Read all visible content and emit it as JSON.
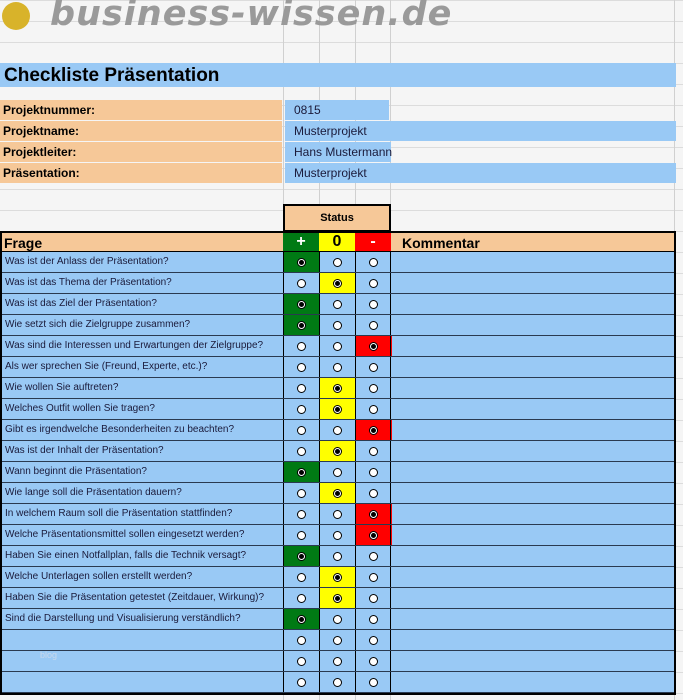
{
  "logo": {
    "text": "business-wissen.de"
  },
  "title": "Checkliste Präsentation",
  "info": [
    {
      "label": "Projektnummer:",
      "value": "0815"
    },
    {
      "label": "Projektname:",
      "value": "Musterprojekt"
    },
    {
      "label": "Projektleiter:",
      "value": "Hans Mustermann"
    },
    {
      "label": "Präsentation:",
      "value": "Musterprojekt"
    }
  ],
  "table": {
    "status_label": "Status",
    "col_frage": "Frage",
    "col_plus": "+",
    "col_zero": "0",
    "col_minus": "-",
    "col_kommentar": "Kommentar",
    "colors": {
      "plus": "#007a14",
      "zero": "#ffff00",
      "minus": "#ff0000"
    },
    "rows": [
      {
        "q": "Was ist der Anlass der Präsentation?",
        "status": "plus"
      },
      {
        "q": "Was ist das Thema der Präsentation?",
        "status": "zero"
      },
      {
        "q": "Was ist das Ziel der Präsentation?",
        "status": "plus"
      },
      {
        "q": "Wie setzt sich die Zielgruppe zusammen?",
        "status": "plus"
      },
      {
        "q": "Was sind die Interessen und Erwartungen der Zielgruppe?",
        "status": "minus"
      },
      {
        "q": "Als wer sprechen Sie (Freund, Experte, etc.)?",
        "status": ""
      },
      {
        "q": "Wie wollen Sie auftreten?",
        "status": "zero"
      },
      {
        "q": "Welches Outfit wollen Sie tragen?",
        "status": "zero"
      },
      {
        "q": "Gibt es irgendwelche Besonderheiten zu beachten?",
        "status": "minus"
      },
      {
        "q": "Was ist der Inhalt der Präsentation?",
        "status": "zero"
      },
      {
        "q": "Wann beginnt die Präsentation?",
        "status": "plus"
      },
      {
        "q": "Wie lange soll die Präsentation dauern?",
        "status": "zero"
      },
      {
        "q": "In welchem Raum soll die Präsentation stattfinden?",
        "status": "minus"
      },
      {
        "q": "Welche Präsentationsmittel sollen eingesetzt werden?",
        "status": "minus"
      },
      {
        "q": "Haben Sie einen Notfallplan, falls die Technik versagt?",
        "status": "plus"
      },
      {
        "q": "Welche Unterlagen sollen erstellt werden?",
        "status": "zero"
      },
      {
        "q": "Haben Sie die Präsentation getestet (Zeitdauer, Wirkung)?",
        "status": "zero"
      },
      {
        "q": "Sind die Darstellung und Visualisierung verständlich?",
        "status": "plus"
      },
      {
        "q": "",
        "status": ""
      },
      {
        "q": "",
        "status": ""
      },
      {
        "q": "",
        "status": ""
      }
    ]
  },
  "watermark": "blog"
}
